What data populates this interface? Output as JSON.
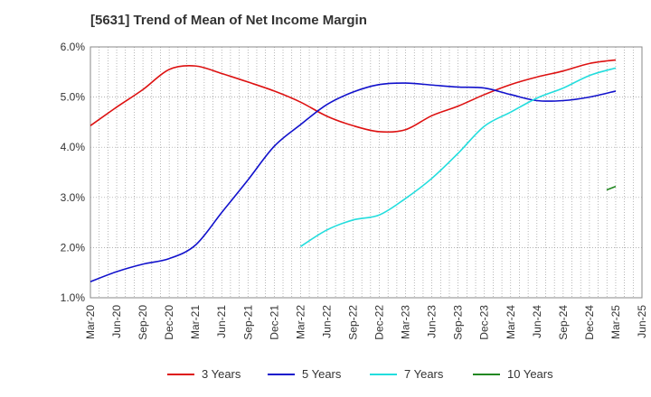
{
  "chart_data": {
    "type": "line",
    "title": "[5631]  Trend of Mean of Net Income Margin",
    "xlabel": "",
    "ylabel": "",
    "ylim": [
      1.0,
      6.0
    ],
    "yticks": [
      "1.0%",
      "2.0%",
      "3.0%",
      "4.0%",
      "5.0%",
      "6.0%"
    ],
    "ytick_values": [
      1.0,
      2.0,
      3.0,
      4.0,
      5.0,
      6.0
    ],
    "categories": [
      "Mar-20",
      "Jun-20",
      "Sep-20",
      "Dec-20",
      "Mar-21",
      "Jun-21",
      "Sep-21",
      "Dec-21",
      "Mar-22",
      "Jun-22",
      "Sep-22",
      "Dec-22",
      "Mar-23",
      "Jun-23",
      "Sep-23",
      "Dec-23",
      "Mar-24",
      "Jun-24",
      "Sep-24",
      "Dec-24",
      "Mar-25",
      "Jun-25"
    ],
    "grid": true,
    "legend_position": "bottom",
    "series": [
      {
        "name": "3 Years",
        "color": "#dd1111",
        "values": [
          4.43,
          4.8,
          5.15,
          5.55,
          5.62,
          5.47,
          5.3,
          5.12,
          4.9,
          4.62,
          4.43,
          4.31,
          4.35,
          4.63,
          4.82,
          5.05,
          5.25,
          5.4,
          5.52,
          5.67,
          5.74,
          null
        ]
      },
      {
        "name": "5 Years",
        "color": "#1111cc",
        "values": [
          1.32,
          1.52,
          1.67,
          1.78,
          2.05,
          2.7,
          3.35,
          4.02,
          4.45,
          4.85,
          5.1,
          5.25,
          5.28,
          5.24,
          5.2,
          5.18,
          5.05,
          4.93,
          4.93,
          5.0,
          5.12,
          null
        ]
      },
      {
        "name": "7 Years",
        "color": "#22dddd",
        "values": [
          null,
          null,
          null,
          null,
          null,
          null,
          null,
          null,
          2.02,
          2.35,
          2.55,
          2.65,
          2.98,
          3.38,
          3.88,
          4.42,
          4.7,
          4.98,
          5.18,
          5.43,
          5.58,
          null
        ]
      },
      {
        "name": "10 Years",
        "color": "#228822",
        "values": [
          null,
          null,
          null,
          null,
          null,
          null,
          null,
          null,
          null,
          null,
          null,
          null,
          null,
          null,
          null,
          null,
          null,
          null,
          null,
          null,
          3.15,
          null
        ],
        "prev_value": 3.22
      }
    ]
  }
}
